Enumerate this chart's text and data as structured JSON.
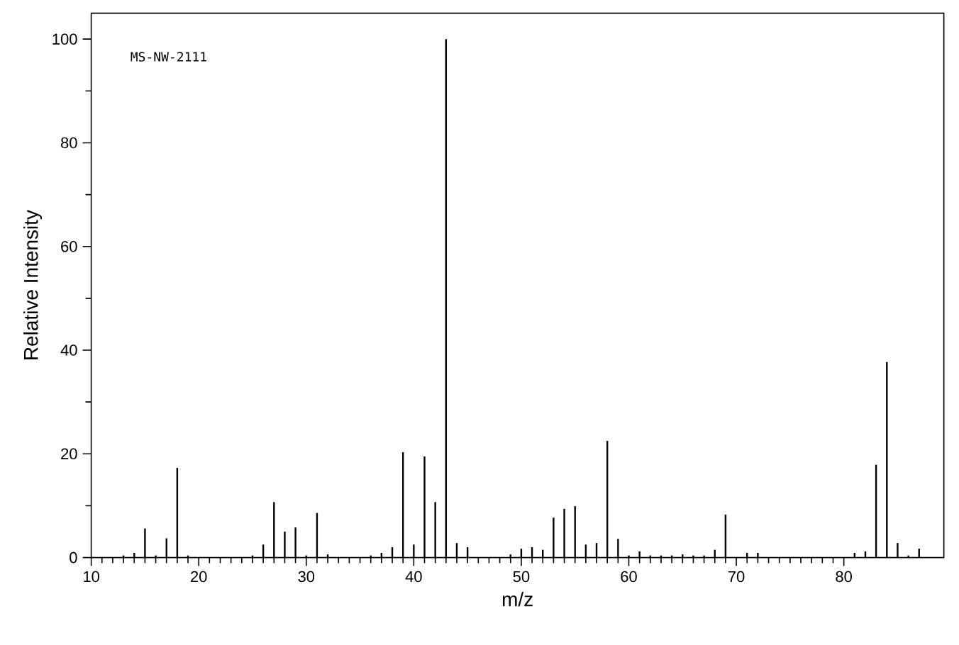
{
  "chart_data": {
    "type": "bar",
    "xlabel": "m/z",
    "ylabel": "Relative Intensity",
    "annotations": [
      "MS-NW-2111"
    ],
    "x": [
      13,
      14,
      15,
      16,
      17,
      18,
      19,
      25,
      26,
      27,
      28,
      29,
      30,
      31,
      32,
      36,
      37,
      38,
      39,
      40,
      41,
      42,
      43,
      44,
      45,
      49,
      50,
      51,
      52,
      53,
      54,
      55,
      56,
      57,
      58,
      59,
      60,
      61,
      62,
      63,
      64,
      65,
      66,
      67,
      68,
      69,
      71,
      72,
      81,
      82,
      83,
      84,
      85,
      86,
      87
    ],
    "values": [
      0.4,
      0.9,
      5.6,
      0.4,
      3.7,
      17.3,
      0.4,
      0.4,
      2.5,
      10.7,
      5.0,
      5.8,
      0.4,
      8.6,
      0.6,
      0.4,
      0.9,
      2.0,
      20.3,
      2.5,
      19.5,
      10.7,
      100,
      2.8,
      2.0,
      0.6,
      1.7,
      2.0,
      1.5,
      7.7,
      9.4,
      9.9,
      2.5,
      2.8,
      22.5,
      3.6,
      0.4,
      1.2,
      0.4,
      0.4,
      0.4,
      0.6,
      0.4,
      0.4,
      1.5,
      8.3,
      0.9,
      0.9,
      0.9,
      1.2,
      17.9,
      37.7,
      2.8,
      0.4,
      1.7
    ],
    "color": "#000000",
    "xlim": [
      10,
      89.3
    ],
    "ylim": [
      0,
      105
    ],
    "xticks": [
      10,
      20,
      30,
      40,
      50,
      60,
      70,
      80
    ],
    "yticks": [
      0,
      20,
      40,
      60,
      80,
      100
    ]
  }
}
